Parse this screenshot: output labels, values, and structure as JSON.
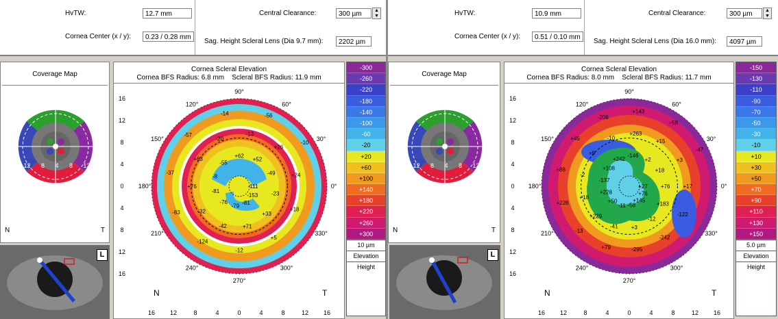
{
  "exams": [
    {
      "hwtw_label": "HvTW:",
      "hwtw_value": "12.7 mm",
      "cornea_center_label": "Cornea Center (x / y):",
      "cornea_center_value": "0.23 / 0.28 mm",
      "central_clearance_label": "Central Clearance:",
      "central_clearance_value": "300 µm",
      "sag_label": "Sag. Height Scleral Lens (Dia 9.7 mm):",
      "sag_value": "2202 µm",
      "coverage_title": "Coverage Map",
      "coverage_labels": [
        "16",
        "12",
        "8",
        "4",
        "8",
        "12",
        "16"
      ],
      "n_label": "N",
      "t_label": "T",
      "eye_badge": "L",
      "map_title": "Cornea Scleral Elevation",
      "bfs_cornea": "Cornea BFS Radius: 6.8 mm",
      "bfs_scleral": "Scleral BFS Radius: 11.9 mm",
      "y_ticks": [
        "16",
        "12",
        "8",
        "4",
        "0",
        "4",
        "8",
        "12",
        "16"
      ],
      "x_ticks": [
        "16",
        "12",
        "8",
        "4",
        "0",
        "4",
        "8",
        "12",
        "16"
      ],
      "angles": [
        "90°",
        "60°",
        "30°",
        "0°",
        "330°",
        "300°",
        "270°",
        "240°",
        "210°",
        "180°",
        "150°",
        "120°"
      ],
      "map_values": [
        "-111",
        "-153",
        "-81",
        "-79",
        "-76",
        "-81",
        "-8",
        "-55",
        "+62",
        "+52",
        "-49",
        "-23",
        "+33",
        "+71",
        "-42",
        "-32",
        "+76",
        "+63",
        "-20",
        "-13",
        "+26",
        "+24",
        "+18",
        "+5",
        "-12",
        "-124",
        "-83",
        "-37",
        "-57",
        "-14",
        "-56",
        "-10"
      ],
      "scale_values": [
        "-300",
        "-260",
        "-220",
        "-180",
        "-140",
        "-100",
        "-60",
        "-20",
        "+20",
        "+60",
        "+100",
        "+140",
        "+180",
        "+220",
        "+260",
        "+300"
      ],
      "scale_colors": [
        "#8a2a9a",
        "#6a3ab0",
        "#3a40c8",
        "#3a5ce0",
        "#3a78e8",
        "#3c98e8",
        "#40b4e8",
        "#60d0e8",
        "#e8e820",
        "#f0c020",
        "#f09a20",
        "#f06a20",
        "#e8402a",
        "#e02050",
        "#d01a70",
        "#b01a80"
      ],
      "unit": "10 µm",
      "elevation_label": "Elevation",
      "height_label": "Height"
    },
    {
      "hwtw_label": "HvTW:",
      "hwtw_value": "10.9 mm",
      "cornea_center_label": "Cornea Center (x / y):",
      "cornea_center_value": "0.51 / 0.10 mm",
      "central_clearance_label": "Central Clearance:",
      "central_clearance_value": "300 µm",
      "sag_label": "Sag. Height Scleral Lens (Dia 16.0 mm):",
      "sag_value": "4097 µm",
      "coverage_title": "Coverage Map",
      "coverage_labels": [
        "16",
        "12",
        "8",
        "4",
        "8",
        "12",
        "16"
      ],
      "n_label": "N",
      "t_label": "T",
      "eye_badge": "L",
      "map_title": "Cornea Scleral Elevation",
      "bfs_cornea": "Cornea BFS Radius: 8.0 mm",
      "bfs_scleral": "Scleral BFS Radius: 11.7 mm",
      "y_ticks": [
        "16",
        "12",
        "8",
        "4",
        "0",
        "4",
        "8",
        "12",
        "16"
      ],
      "x_ticks": [
        "16",
        "12",
        "8",
        "4",
        "0",
        "4",
        "8",
        "12",
        "16"
      ],
      "angles": [
        "90°",
        "60°",
        "30°",
        "0°",
        "330°",
        "300°",
        "270°",
        "240°",
        "210°",
        "180°",
        "150°",
        "120°"
      ],
      "map_values": [
        "+27",
        "+76",
        "+145",
        "-58",
        "-11",
        "+50",
        "+228",
        "-137",
        "+108",
        "+242",
        "-146",
        "+2",
        "+18",
        "+76",
        "+183",
        "-12",
        "+3",
        "-41",
        "+229",
        "+18",
        "-2",
        "+9",
        "-10",
        "+263",
        "+15",
        "+3",
        "+17",
        "-122",
        "-242",
        "-295",
        "+79",
        "-13",
        "+226",
        "+88",
        "+45",
        "-206",
        "+143",
        "+58",
        "-47"
      ],
      "scale_values": [
        "-150",
        "-130",
        "-110",
        "-90",
        "-70",
        "-50",
        "-30",
        "-10",
        "+10",
        "+30",
        "+50",
        "+70",
        "+90",
        "+110",
        "+130",
        "+150"
      ],
      "scale_colors": [
        "#8a2a9a",
        "#6a3ab0",
        "#3a40c8",
        "#3a5ce0",
        "#3a78e8",
        "#3c98e8",
        "#40b4e8",
        "#60d0e8",
        "#e8e820",
        "#f0c020",
        "#f09a20",
        "#f06a20",
        "#e8402a",
        "#e02050",
        "#d01a70",
        "#b01a80"
      ],
      "unit": "5.0 µm",
      "elevation_label": "Elevation",
      "height_label": "Height"
    }
  ]
}
